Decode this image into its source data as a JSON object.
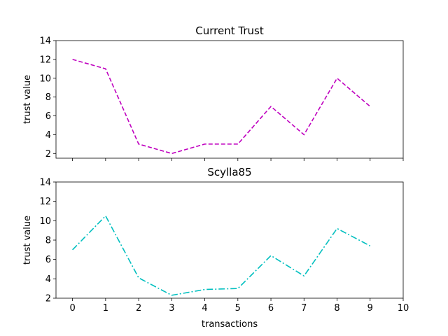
{
  "colors": {
    "series_top": "#bf00bf",
    "series_bottom": "#00bfbf",
    "frame": "#000000",
    "background": "#ffffff"
  },
  "chart_data": [
    {
      "type": "line",
      "title": "Current Trust",
      "xlabel": "",
      "ylabel": "trust value",
      "x": [
        0,
        1,
        2,
        3,
        4,
        5,
        6,
        7,
        8,
        9
      ],
      "series": [
        {
          "values": [
            12,
            11,
            3,
            2,
            3,
            3,
            7,
            4,
            10,
            7
          ],
          "color": "#bf00bf",
          "linestyle": "dashed"
        }
      ],
      "xlim": [
        -0.5,
        10.0
      ],
      "ylim": [
        1.5,
        14.0
      ],
      "xticks": [
        0,
        1,
        2,
        3,
        4,
        5,
        6,
        7,
        8,
        9,
        10
      ],
      "xtick_labels_shown": false,
      "yticks": [
        2,
        4,
        6,
        8,
        10,
        12,
        14
      ],
      "grid": false,
      "legend": "none"
    },
    {
      "type": "line",
      "title": "Scylla85",
      "xlabel": "transactions",
      "ylabel": "trust value",
      "x": [
        0,
        1,
        2,
        3,
        4,
        5,
        6,
        7,
        8,
        9
      ],
      "series": [
        {
          "values": [
            7.0,
            10.5,
            4.1,
            2.3,
            2.9,
            3.0,
            6.4,
            4.3,
            9.2,
            7.4
          ],
          "color": "#00bfbf",
          "linestyle": "dashdot"
        }
      ],
      "xlim": [
        -0.5,
        10.0
      ],
      "ylim": [
        2.0,
        14.0
      ],
      "xticks": [
        0,
        1,
        2,
        3,
        4,
        5,
        6,
        7,
        8,
        9,
        10
      ],
      "xtick_labels_shown": true,
      "yticks": [
        2,
        4,
        6,
        8,
        10,
        12,
        14
      ],
      "grid": false,
      "legend": "none"
    }
  ]
}
